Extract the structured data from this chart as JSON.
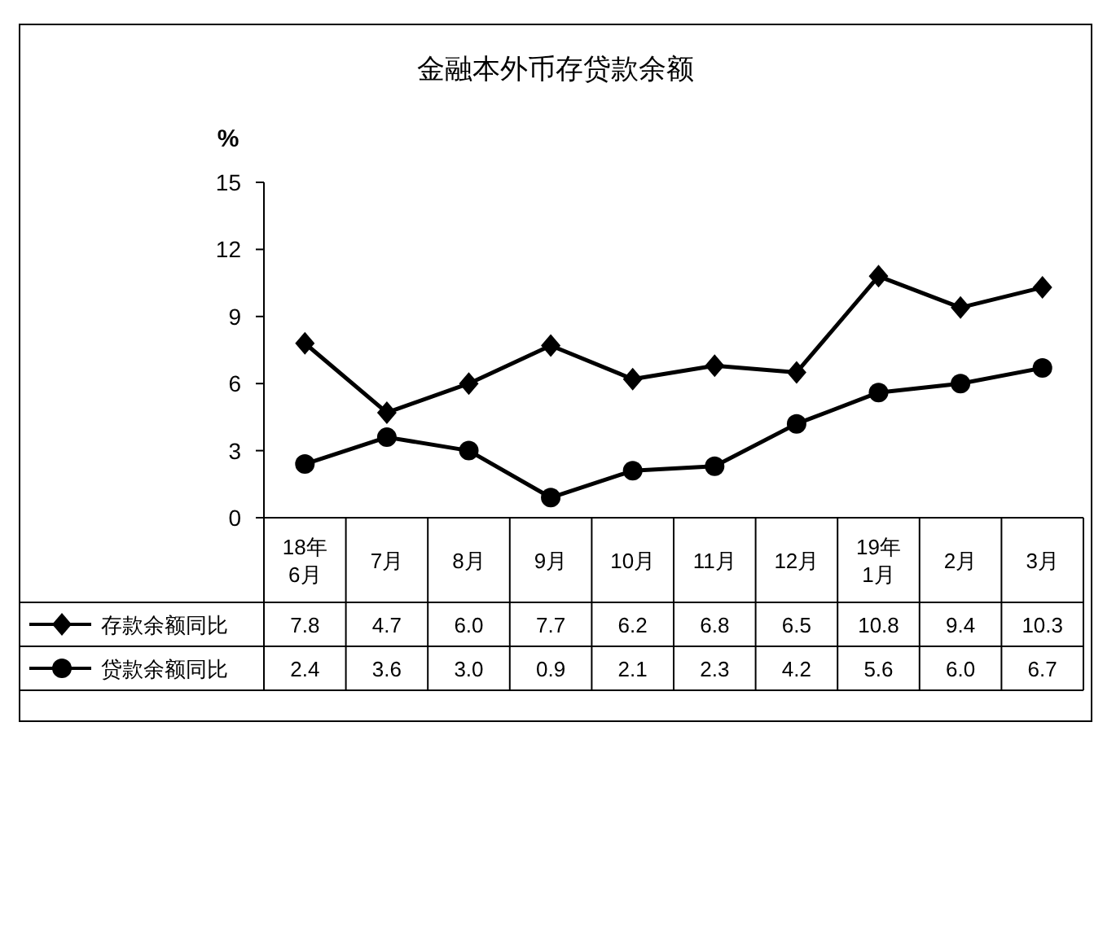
{
  "chart_data": {
    "type": "line",
    "title": "金融本外币存贷款余额",
    "ylabel": "%",
    "categories": [
      "18年\n6月",
      "7月",
      "8月",
      "9月",
      "10月",
      "11月",
      "12月",
      "19年\n1月",
      "2月",
      "3月"
    ],
    "ylim": [
      0,
      15
    ],
    "yticks": [
      0,
      3,
      6,
      9,
      12,
      15
    ],
    "grid": false,
    "legend": "bottom",
    "series": [
      {
        "name": "存款余额同比",
        "color": "#000000",
        "marker": "diamond",
        "values": [
          7.8,
          4.7,
          6.0,
          7.7,
          6.2,
          6.8,
          6.5,
          10.8,
          9.4,
          10.3
        ],
        "value_labels": [
          "7.8",
          "4.7",
          "6.0",
          "7.7",
          "6.2",
          "6.8",
          "6.5",
          "10.8",
          "9.4",
          "10.3"
        ]
      },
      {
        "name": "贷款余额同比",
        "color": "#000000",
        "marker": "circle",
        "values": [
          2.4,
          3.6,
          3.0,
          0.9,
          2.1,
          2.3,
          4.2,
          5.6,
          6.0,
          6.7
        ],
        "value_labels": [
          "2.4",
          "3.6",
          "3.0",
          "0.9",
          "2.1",
          "2.3",
          "4.2",
          "5.6",
          "6.0",
          "6.7"
        ]
      }
    ]
  }
}
